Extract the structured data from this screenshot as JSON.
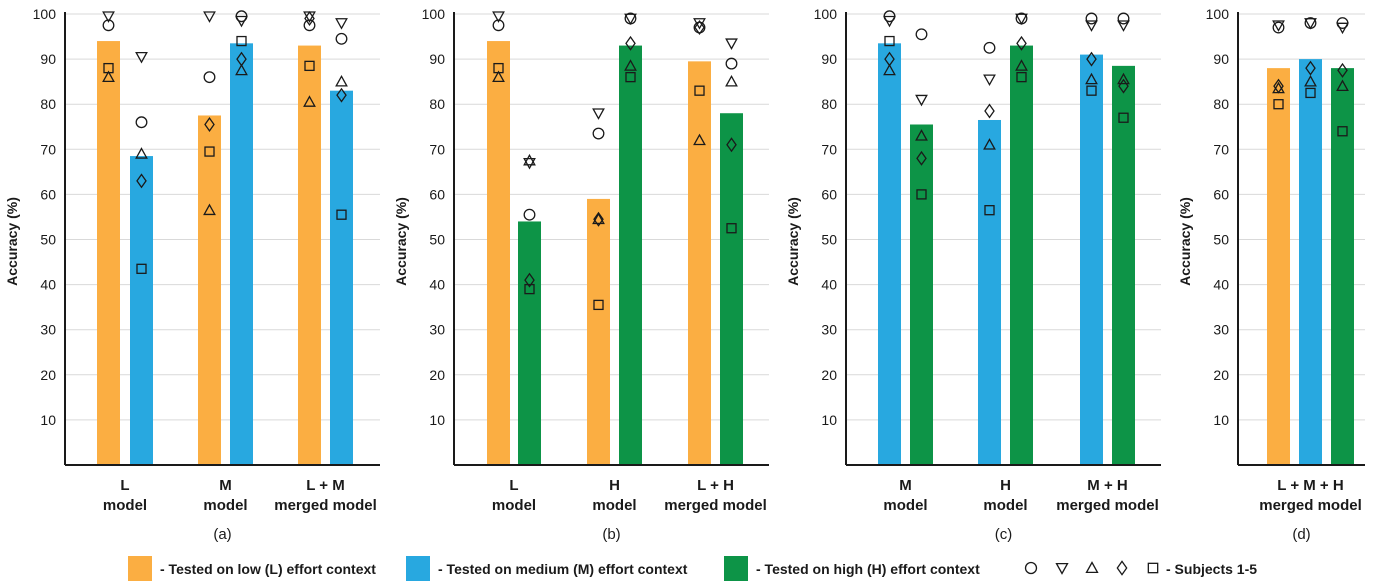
{
  "colors": {
    "low": "#fbae42",
    "medium": "#28a8e0",
    "high": "#0d9447",
    "marker": "#1a1a1a"
  },
  "marker_symbols": [
    "circle",
    "triangle-down",
    "triangle-up",
    "diamond",
    "square"
  ],
  "chart_data": [
    {
      "type": "bar",
      "panel_label": "(a)",
      "ylabel": "Accuracy (%)",
      "ylim": [
        0,
        100
      ],
      "yticks": [
        10,
        20,
        30,
        40,
        50,
        60,
        70,
        80,
        90,
        100
      ],
      "grid": true,
      "groups": [
        {
          "label": [
            "L",
            "model"
          ],
          "bars": [
            {
              "context": "low",
              "value": 94,
              "subjects": [
                97.5,
                99.5,
                86,
                null,
                88
              ]
            },
            {
              "context": "medium",
              "value": 68.5,
              "subjects": [
                76,
                90.5,
                69,
                63,
                43.5
              ]
            }
          ]
        },
        {
          "label": [
            "M",
            "model"
          ],
          "bars": [
            {
              "context": "low",
              "value": 77.5,
              "subjects": [
                86,
                99.5,
                56.5,
                75.5,
                69.5
              ]
            },
            {
              "context": "medium",
              "value": 93.5,
              "subjects": [
                99.5,
                98.5,
                87.5,
                90,
                94
              ]
            }
          ]
        },
        {
          "label": [
            "L + M",
            "merged model"
          ],
          "bars": [
            {
              "context": "low",
              "value": 93,
              "subjects": [
                97.5,
                99.5,
                80.5,
                99,
                88.5
              ]
            },
            {
              "context": "medium",
              "value": 83,
              "subjects": [
                94.5,
                98,
                85,
                82,
                55.5
              ]
            }
          ]
        }
      ]
    },
    {
      "type": "bar",
      "panel_label": "(b)",
      "ylabel": "Accuracy (%)",
      "ylim": [
        0,
        100
      ],
      "yticks": [
        10,
        20,
        30,
        40,
        50,
        60,
        70,
        80,
        90,
        100
      ],
      "grid": true,
      "groups": [
        {
          "label": [
            "L",
            "model"
          ],
          "bars": [
            {
              "context": "low",
              "value": 94,
              "subjects": [
                97.5,
                99.5,
                86,
                null,
                88
              ]
            },
            {
              "context": "high",
              "value": 54,
              "subjects": [
                55.5,
                67,
                67.5,
                41,
                39
              ]
            }
          ]
        },
        {
          "label": [
            "H",
            "model"
          ],
          "bars": [
            {
              "context": "low",
              "value": 59,
              "subjects": [
                73.5,
                78,
                54.5,
                54.5,
                35.5
              ]
            },
            {
              "context": "high",
              "value": 93,
              "subjects": [
                99,
                99,
                88.5,
                93.5,
                86
              ]
            }
          ]
        },
        {
          "label": [
            "L + H",
            "merged model"
          ],
          "bars": [
            {
              "context": "low",
              "value": 89.5,
              "subjects": [
                97,
                98,
                72,
                97,
                83
              ]
            },
            {
              "context": "high",
              "value": 78,
              "subjects": [
                89,
                93.5,
                85,
                71,
                52.5
              ]
            }
          ]
        }
      ]
    },
    {
      "type": "bar",
      "panel_label": "(c)",
      "ylabel": "Accuracy (%)",
      "ylim": [
        0,
        100
      ],
      "yticks": [
        10,
        20,
        30,
        40,
        50,
        60,
        70,
        80,
        90,
        100
      ],
      "grid": true,
      "groups": [
        {
          "label": [
            "M",
            "model"
          ],
          "bars": [
            {
              "context": "medium",
              "value": 93.5,
              "subjects": [
                99.5,
                98.5,
                87.5,
                90,
                94
              ]
            },
            {
              "context": "high",
              "value": 75.5,
              "subjects": [
                95.5,
                81,
                73,
                68,
                60
              ]
            }
          ]
        },
        {
          "label": [
            "H",
            "model"
          ],
          "bars": [
            {
              "context": "medium",
              "value": 76.5,
              "subjects": [
                92.5,
                85.5,
                71,
                78.5,
                56.5
              ]
            },
            {
              "context": "high",
              "value": 93,
              "subjects": [
                99,
                99,
                88.5,
                93.5,
                86
              ]
            }
          ]
        },
        {
          "label": [
            "M + H",
            "merged model"
          ],
          "bars": [
            {
              "context": "medium",
              "value": 91,
              "subjects": [
                99,
                97.5,
                85.5,
                90,
                83
              ]
            },
            {
              "context": "high",
              "value": 88.5,
              "subjects": [
                99,
                97.5,
                85.5,
                84,
                77
              ]
            }
          ]
        }
      ]
    },
    {
      "type": "bar",
      "panel_label": "(d)",
      "ylabel": "Accuracy (%)",
      "ylim": [
        0,
        100
      ],
      "yticks": [
        10,
        20,
        30,
        40,
        50,
        60,
        70,
        80,
        90,
        100
      ],
      "grid": true,
      "groups": [
        {
          "label": [
            "L + M + H",
            "merged model"
          ],
          "bars": [
            {
              "context": "low",
              "value": 88,
              "subjects": [
                97,
                97.5,
                83.5,
                84,
                80
              ]
            },
            {
              "context": "medium",
              "value": 90,
              "subjects": [
                98,
                98,
                85,
                88,
                82.5
              ]
            },
            {
              "context": "high",
              "value": 88,
              "subjects": [
                98,
                97,
                84,
                87.5,
                74
              ]
            }
          ]
        }
      ]
    }
  ],
  "legend": {
    "items": [
      {
        "context": "low",
        "label": "- Tested on low (L) effort context"
      },
      {
        "context": "medium",
        "label": "- Tested on medium (M) effort context"
      },
      {
        "context": "high",
        "label": "- Tested on high (H) effort context"
      }
    ],
    "subjects_label": "-   Subjects 1-5"
  }
}
